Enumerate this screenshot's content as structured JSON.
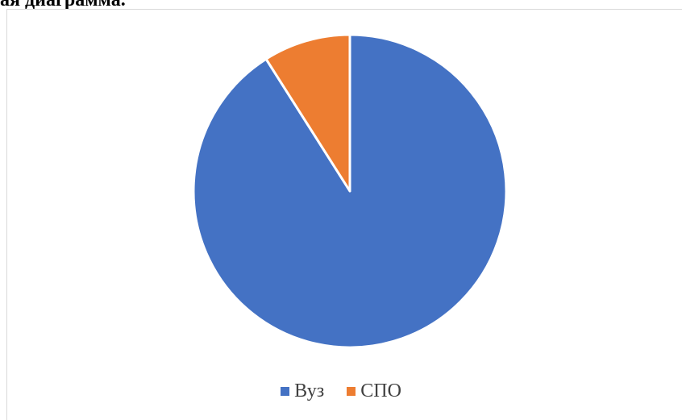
{
  "heading": "ая диаграмма.",
  "chart_data": {
    "type": "pie",
    "categories": [
      "Вуз",
      "СПО"
    ],
    "values": [
      91,
      9
    ],
    "colors": [
      "#4472c4",
      "#ed7d31"
    ],
    "legend_position": "bottom"
  }
}
